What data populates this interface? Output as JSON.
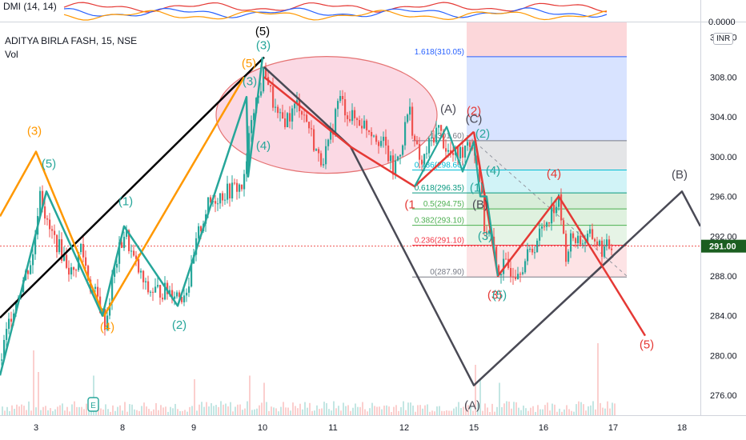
{
  "indicator": {
    "label": "DMI (14, 14)",
    "value": "0.0000"
  },
  "symbol": {
    "title": "ADITYA BIRLA FASH, 15, NSE",
    "volume_label": "Vol",
    "currency": "INR"
  },
  "colors": {
    "up": "#26a69a",
    "down": "#ef5350",
    "wave_black": "#000000",
    "wave_orange": "#ff9800",
    "wave_teal": "#26a69a",
    "wave_red": "#e53935",
    "wave_gray": "#4a4a55",
    "price_tag": "#1b5e20"
  },
  "chart_data": {
    "type": "candlestick",
    "ylim": [
      274,
      313.5
    ],
    "y_ticks": [
      276,
      280,
      284,
      288,
      292,
      296,
      300,
      304,
      308,
      312
    ],
    "y_tick_labels": [
      "276.00",
      "280.00",
      "284.00",
      "288.00",
      "292.00",
      "296.00",
      "300.00",
      "304.00",
      "308.00",
      "312.00"
    ],
    "x_ticks": [
      {
        "label": "3",
        "t": 45
      },
      {
        "label": "8",
        "t": 153
      },
      {
        "label": "9",
        "t": 242
      },
      {
        "label": "10",
        "t": 328
      },
      {
        "label": "11",
        "t": 416
      },
      {
        "label": "12",
        "t": 505
      },
      {
        "label": "15",
        "t": 592
      },
      {
        "label": "16",
        "t": 679
      },
      {
        "label": "17",
        "t": 766
      },
      {
        "label": "18",
        "t": 852
      }
    ],
    "x_range": [
      0,
      875
    ],
    "last_price": {
      "value": 291.0,
      "label": "291.00"
    },
    "price_path": [
      [
        0,
        279.5
      ],
      [
        12,
        284
      ],
      [
        25,
        287
      ],
      [
        40,
        290
      ],
      [
        49,
        297
      ],
      [
        58,
        293
      ],
      [
        72,
        291
      ],
      [
        90,
        288
      ],
      [
        100,
        291
      ],
      [
        112,
        287
      ],
      [
        122,
        285.5
      ],
      [
        131,
        283
      ],
      [
        138,
        287
      ],
      [
        146,
        290
      ],
      [
        155,
        292.5
      ],
      [
        164,
        290
      ],
      [
        172,
        288.5
      ],
      [
        182,
        286.5
      ],
      [
        200,
        286.5
      ],
      [
        215,
        286.5
      ],
      [
        226,
        286
      ],
      [
        236,
        287.5
      ],
      [
        246,
        292
      ],
      [
        258,
        295
      ],
      [
        270,
        296
      ],
      [
        284,
        296.5
      ],
      [
        296,
        297
      ],
      [
        303,
        297
      ],
      [
        308,
        300
      ],
      [
        314,
        305
      ],
      [
        322,
        306
      ],
      [
        330,
        309
      ],
      [
        338,
        306
      ],
      [
        347,
        303.5
      ],
      [
        360,
        304
      ],
      [
        372,
        305.5
      ],
      [
        385,
        303
      ],
      [
        398,
        299.5
      ],
      [
        410,
        301
      ],
      [
        422,
        306
      ],
      [
        436,
        304
      ],
      [
        450,
        303.5
      ],
      [
        466,
        302.5
      ],
      [
        480,
        301
      ],
      [
        490,
        298.5
      ],
      [
        500,
        301
      ],
      [
        510,
        305
      ],
      [
        518,
        301
      ],
      [
        526,
        299
      ],
      [
        534,
        301
      ],
      [
        546,
        303
      ],
      [
        558,
        300.5
      ],
      [
        566,
        300
      ],
      [
        576,
        300.5
      ],
      [
        584,
        302
      ],
      [
        592,
        300.5
      ],
      [
        598,
        298
      ],
      [
        604,
        293
      ],
      [
        612,
        292
      ],
      [
        620,
        288.5
      ],
      [
        630,
        289
      ],
      [
        642,
        288.5
      ],
      [
        655,
        289.5
      ],
      [
        666,
        291
      ],
      [
        678,
        293
      ],
      [
        690,
        295
      ],
      [
        698,
        295.5
      ],
      [
        705,
        290
      ],
      [
        714,
        292
      ],
      [
        728,
        291.5
      ],
      [
        740,
        292
      ],
      [
        752,
        290.5
      ],
      [
        760,
        291
      ],
      [
        765,
        291
      ]
    ],
    "volume_spikes": [
      {
        "t": 42,
        "v": 0.9
      },
      {
        "t": 48,
        "v": 0.6
      },
      {
        "t": 116,
        "v": 0.55
      },
      {
        "t": 242,
        "v": 0.5
      },
      {
        "t": 310,
        "v": 0.55
      },
      {
        "t": 328,
        "v": 0.45
      },
      {
        "t": 594,
        "v": 0.7
      },
      {
        "t": 600,
        "v": 0.5
      },
      {
        "t": 622,
        "v": 0.45
      },
      {
        "t": 746,
        "v": 1.0
      }
    ],
    "waves": {
      "black": [
        [
          0,
          283.8
        ],
        [
          330,
          310
        ]
      ],
      "orange": [
        [
          0,
          294
        ],
        [
          45,
          300.5
        ],
        [
          130,
          284
        ],
        [
          305,
          308
        ]
      ],
      "teal_main": [
        [
          0,
          278
        ],
        [
          58,
          296.5
        ],
        [
          128,
          284
        ],
        [
          155,
          293
        ],
        [
          222,
          285
        ],
        [
          308,
          306
        ],
        [
          310,
          298
        ],
        [
          328,
          310
        ]
      ],
      "gray": [
        [
          330,
          309
        ],
        [
          438,
          301
        ],
        [
          592,
          277
        ],
        [
          852,
          296.5
        ],
        [
          875,
          293
        ]
      ],
      "gray_connector": [
        [
          592,
          277
        ],
        [
          766,
          290
        ]
      ],
      "red_a": [
        [
          330,
          308
        ],
        [
          438,
          301
        ],
        [
          518,
          297
        ],
        [
          592,
          302.5
        ]
      ],
      "red_b": [
        [
          592,
          302.5
        ],
        [
          610,
          294
        ],
        [
          622,
          288
        ],
        [
          698,
          296
        ],
        [
          760,
          288
        ],
        [
          806,
          282
        ]
      ],
      "teal_sub": [
        [
          518,
          297
        ],
        [
          558,
          303
        ],
        [
          578,
          298.5
        ],
        [
          592,
          301.5
        ],
        [
          600,
          296
        ],
        [
          608,
          296
        ],
        [
          622,
          288
        ]
      ]
    },
    "fib": {
      "x_start": 515,
      "x_end": 783,
      "box_x_start": 583,
      "box_top": 313.5,
      "levels": [
        {
          "label": "1.618(310.05)",
          "price": 310.05
        },
        {
          "label": "1(301.60)",
          "price": 301.6
        },
        {
          "label": "0.786(298.66)",
          "price": 298.66
        },
        {
          "label": "0.618(296.35)",
          "price": 296.35
        },
        {
          "label": "0.5(294.75)",
          "price": 294.75
        },
        {
          "label": "0.382(293.10)",
          "price": 293.1
        },
        {
          "label": "0.236(291.10)",
          "price": 291.1
        },
        {
          "label": "0(287.90)",
          "price": 287.9
        }
      ]
    },
    "ellipse": {
      "cx": 408,
      "cy_price": 304.2,
      "rx": 138,
      "ry": 73
    },
    "wave_labels": [
      {
        "text": "(5)",
        "t": 328,
        "p": 312.2,
        "color": "black"
      },
      {
        "text": "(5)",
        "t": 311,
        "p": 309,
        "color": "orange"
      },
      {
        "text": "(3)",
        "t": 329,
        "p": 310.8,
        "color": "teal"
      },
      {
        "text": "(3)",
        "t": 312,
        "p": 307.2,
        "color": "teal"
      },
      {
        "text": "(4)",
        "t": 329,
        "p": 300.7,
        "color": "teal"
      },
      {
        "text": "(3)",
        "t": 43,
        "p": 302.2,
        "color": "orange"
      },
      {
        "text": "(5)",
        "t": 61,
        "p": 298.9,
        "color": "teal"
      },
      {
        "text": "(1)",
        "t": 157,
        "p": 295.1,
        "color": "teal"
      },
      {
        "text": "(4)",
        "t": 134,
        "p": 282.5,
        "color": "orange"
      },
      {
        "text": "(2)",
        "t": 224,
        "p": 282.7,
        "color": "teal"
      },
      {
        "text": "(A)",
        "t": 560,
        "p": 304.4,
        "color": "gray"
      },
      {
        "text": "(2)",
        "t": 592,
        "p": 304.2,
        "color": "red"
      },
      {
        "text": "(C)",
        "t": 592,
        "p": 303.4,
        "color": "gray"
      },
      {
        "text": "(2)",
        "t": 603,
        "p": 301.9,
        "color": "teal"
      },
      {
        "text": "(4)",
        "t": 616,
        "p": 298.2,
        "color": "teal"
      },
      {
        "text": "(1)",
        "t": 596,
        "p": 296.5,
        "color": "teal"
      },
      {
        "text": "(1",
        "t": 512,
        "p": 294.8,
        "color": "red"
      },
      {
        "text": "(B)",
        "t": 600,
        "p": 294.8,
        "color": "gray"
      },
      {
        "text": "(3)",
        "t": 606,
        "p": 291.6,
        "color": "teal"
      },
      {
        "text": "(3)",
        "t": 618,
        "p": 285.7,
        "color": "red"
      },
      {
        "text": "(5)",
        "t": 624,
        "p": 285.7,
        "color": "teal"
      },
      {
        "text": "(4)",
        "t": 692,
        "p": 297.9,
        "color": "red"
      },
      {
        "text": "(B)",
        "t": 849,
        "p": 297.8,
        "color": "gray"
      },
      {
        "text": "(5)",
        "t": 808,
        "p": 280.7,
        "color": "red"
      },
      {
        "text": "(A)",
        "t": 590,
        "p": 274.6,
        "color": "gray"
      }
    ]
  }
}
